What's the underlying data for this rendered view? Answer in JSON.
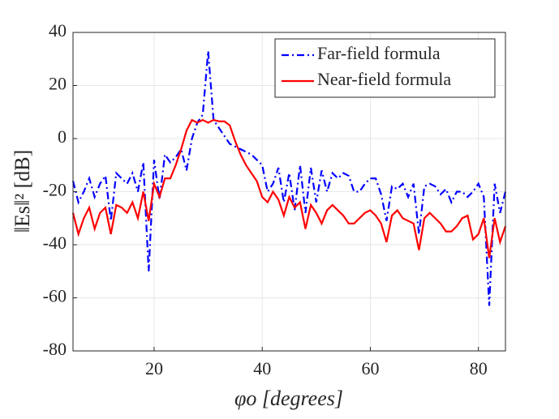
{
  "chart_data": {
    "type": "line",
    "xlabel": "φo  [degrees]",
    "ylabel": "‖Es‖²  [dB]",
    "x": [
      5,
      6,
      7,
      8,
      9,
      10,
      11,
      12,
      13,
      14,
      15,
      16,
      17,
      18,
      19,
      20,
      21,
      22,
      23,
      24,
      25,
      26,
      27,
      28,
      29,
      30,
      31,
      32,
      33,
      34,
      35,
      36,
      37,
      38,
      39,
      40,
      41,
      42,
      43,
      44,
      45,
      46,
      47,
      48,
      49,
      50,
      51,
      52,
      53,
      54,
      55,
      56,
      57,
      58,
      59,
      60,
      61,
      62,
      63,
      64,
      65,
      66,
      67,
      68,
      69,
      70,
      71,
      72,
      73,
      74,
      75,
      76,
      77,
      78,
      79,
      80,
      81,
      82,
      83,
      84,
      85
    ],
    "series": [
      {
        "name": "Far-field formula",
        "color": "#0000ff",
        "dash": "dashdot",
        "values": [
          -16,
          -24,
          -20,
          -15,
          -22,
          -17,
          -14,
          -31,
          -13,
          -15,
          -17,
          -13,
          -20,
          -9,
          -50,
          -8,
          -23,
          -6,
          -9,
          -7,
          -4,
          -12,
          0,
          6,
          9,
          33,
          7,
          4,
          1,
          -2,
          -3,
          -4,
          -5,
          -6,
          -8,
          -10,
          -20,
          -17,
          -11,
          -24,
          -13,
          -27,
          -10,
          -28,
          -11,
          -24,
          -12,
          -20,
          -13,
          -15,
          -13,
          -14,
          -20,
          -20,
          -17,
          -15,
          -15,
          -21,
          -31,
          -18,
          -19,
          -17,
          -22,
          -17,
          -36,
          -18,
          -17,
          -18,
          -21,
          -19,
          -24,
          -20,
          -20,
          -22,
          -20,
          -17,
          -22,
          -63,
          -17,
          -28,
          -20
        ]
      },
      {
        "name": "Near-field formula",
        "color": "#ff0000",
        "dash": "solid",
        "values": [
          -28,
          -36,
          -30,
          -26,
          -34,
          -28,
          -26,
          -36,
          -25,
          -26,
          -28,
          -24,
          -30,
          -20,
          -31,
          -17,
          -22,
          -15,
          -15,
          -10,
          -4,
          3,
          7,
          6,
          7,
          6,
          7,
          6.5,
          6.5,
          5,
          -1,
          -6,
          -10,
          -13,
          -16,
          -22,
          -24,
          -20,
          -23,
          -29,
          -22,
          -26,
          -24,
          -34,
          -25,
          -28,
          -32,
          -27,
          -25,
          -27,
          -29,
          -32,
          -32,
          -30,
          -28,
          -27,
          -29,
          -32,
          -39,
          -29,
          -27,
          -30,
          -31,
          -32,
          -42,
          -30,
          -28,
          -30,
          -32,
          -35,
          -35,
          -33,
          -30,
          -29,
          -38,
          -36,
          -30,
          -45,
          -30,
          -39,
          -33
        ]
      }
    ],
    "xlim": [
      5,
      85
    ],
    "xticks": [
      20,
      40,
      60,
      80
    ],
    "ylim": [
      -80,
      40
    ],
    "yticks": [
      -80,
      -60,
      -40,
      -20,
      0,
      20,
      40
    ],
    "grid": true,
    "legend": "northeast"
  }
}
